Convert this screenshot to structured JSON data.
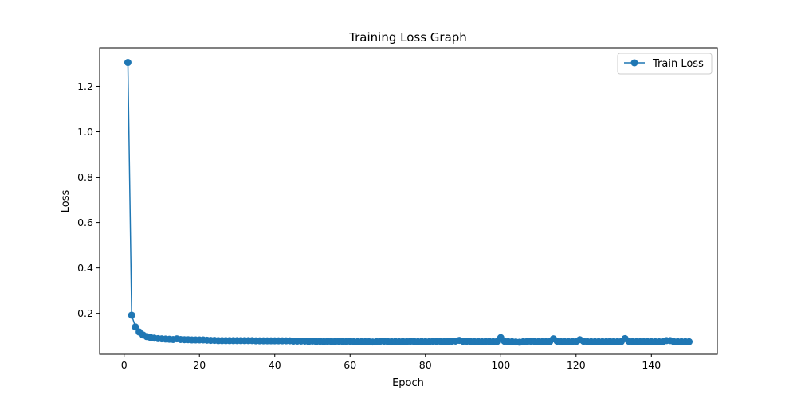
{
  "chart_data": {
    "type": "line",
    "title": "Training Loss Graph",
    "xlabel": "Epoch",
    "ylabel": "Loss",
    "xlim": [
      -6.5,
      157.5
    ],
    "ylim": [
      0.02,
      1.37
    ],
    "xticks": [
      0,
      20,
      40,
      60,
      80,
      100,
      120,
      140
    ],
    "yticks": [
      0.2,
      0.4,
      0.6,
      0.8,
      1.0,
      1.2
    ],
    "ytick_labels": [
      "0.2",
      "0.4",
      "0.6",
      "0.8",
      "1.0",
      "1.2"
    ],
    "grid": false,
    "legend_position": "top-right",
    "series": [
      {
        "name": "Train Loss",
        "color": "#1f77b4",
        "marker": "circle",
        "x": [
          1,
          2,
          3,
          4,
          5,
          6,
          7,
          8,
          9,
          10,
          11,
          12,
          13,
          14,
          15,
          16,
          17,
          18,
          19,
          20,
          21,
          22,
          23,
          24,
          25,
          26,
          27,
          28,
          29,
          30,
          31,
          32,
          33,
          34,
          35,
          36,
          37,
          38,
          39,
          40,
          41,
          42,
          43,
          44,
          45,
          46,
          47,
          48,
          49,
          50,
          51,
          52,
          53,
          54,
          55,
          56,
          57,
          58,
          59,
          60,
          61,
          62,
          63,
          64,
          65,
          66,
          67,
          68,
          69,
          70,
          71,
          72,
          73,
          74,
          75,
          76,
          77,
          78,
          79,
          80,
          81,
          82,
          83,
          84,
          85,
          86,
          87,
          88,
          89,
          90,
          91,
          92,
          93,
          94,
          95,
          96,
          97,
          98,
          99,
          100,
          101,
          102,
          103,
          104,
          105,
          106,
          107,
          108,
          109,
          110,
          111,
          112,
          113,
          114,
          115,
          116,
          117,
          118,
          119,
          120,
          121,
          122,
          123,
          124,
          125,
          126,
          127,
          128,
          129,
          130,
          131,
          132,
          133,
          134,
          135,
          136,
          137,
          138,
          139,
          140,
          141,
          142,
          143,
          144,
          145,
          146,
          147,
          148,
          149,
          150
        ],
        "y": [
          1.305,
          0.192,
          0.14,
          0.118,
          0.105,
          0.098,
          0.094,
          0.091,
          0.089,
          0.088,
          0.087,
          0.086,
          0.085,
          0.088,
          0.085,
          0.084,
          0.084,
          0.083,
          0.083,
          0.083,
          0.083,
          0.082,
          0.081,
          0.081,
          0.08,
          0.08,
          0.08,
          0.08,
          0.08,
          0.08,
          0.08,
          0.08,
          0.08,
          0.08,
          0.079,
          0.079,
          0.079,
          0.079,
          0.079,
          0.079,
          0.079,
          0.079,
          0.079,
          0.079,
          0.078,
          0.078,
          0.078,
          0.078,
          0.076,
          0.078,
          0.076,
          0.077,
          0.075,
          0.077,
          0.076,
          0.076,
          0.077,
          0.076,
          0.076,
          0.077,
          0.075,
          0.075,
          0.075,
          0.075,
          0.075,
          0.074,
          0.075,
          0.077,
          0.077,
          0.076,
          0.075,
          0.076,
          0.075,
          0.076,
          0.075,
          0.077,
          0.076,
          0.075,
          0.076,
          0.075,
          0.075,
          0.077,
          0.076,
          0.077,
          0.075,
          0.076,
          0.077,
          0.078,
          0.081,
          0.077,
          0.077,
          0.076,
          0.075,
          0.076,
          0.075,
          0.076,
          0.076,
          0.075,
          0.076,
          0.093,
          0.077,
          0.075,
          0.075,
          0.074,
          0.073,
          0.075,
          0.076,
          0.077,
          0.076,
          0.075,
          0.075,
          0.075,
          0.075,
          0.088,
          0.077,
          0.075,
          0.075,
          0.075,
          0.076,
          0.076,
          0.084,
          0.077,
          0.075,
          0.075,
          0.075,
          0.075,
          0.075,
          0.075,
          0.076,
          0.075,
          0.075,
          0.076,
          0.089,
          0.077,
          0.075,
          0.075,
          0.075,
          0.075,
          0.075,
          0.075,
          0.075,
          0.075,
          0.075,
          0.08,
          0.08,
          0.075,
          0.075,
          0.075,
          0.075,
          0.075
        ]
      }
    ]
  }
}
